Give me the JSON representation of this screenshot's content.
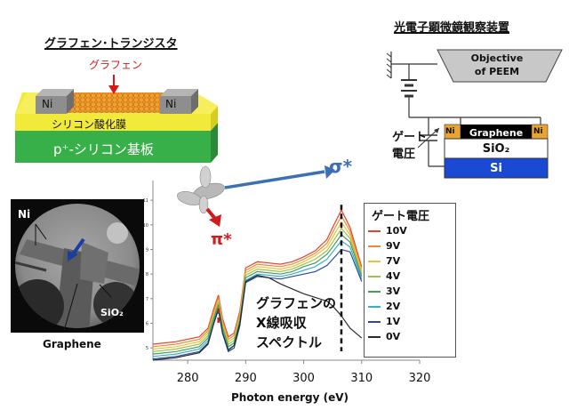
{
  "transistor": {
    "title": "グラフェン･トランジスタ",
    "graphene_label": "グラフェン",
    "ni_left": "Ni",
    "ni_right": "Ni",
    "oxide_label": "シリコン酸化膜",
    "substrate_label": "p⁺-シリコン基板"
  },
  "peem": {
    "title": "光電子顕微鏡観察装置",
    "objective_line1": "Objective",
    "objective_line2": "of PEEM",
    "gate_line1": "ゲート",
    "gate_line2": "電圧",
    "ni_left": "Ni",
    "ni_right": "Ni",
    "graphene_label": "Graphene",
    "sio2_label": "SiO₂",
    "si_label": "Si"
  },
  "micrograph": {
    "ni_label": "Ni",
    "sio2_label": "SiO₂",
    "graphene_label": "Graphene"
  },
  "spectrum_labels": {
    "pi_star": "π*",
    "sigma_star": "σ*",
    "caption_line1": "グラフェンの",
    "caption_line2": "X線吸収",
    "caption_line3": "スペクトル"
  },
  "colors": {
    "yellow_layer": "#f2ea3a",
    "green_layer": "#38b04a",
    "blue_layer": "#1a49d4",
    "ni_gray": "#8e8e8e",
    "arrow_red": "#d11b1b",
    "arrow_blue": "#3d6fb5",
    "graphene_orange": "#f0a22c"
  },
  "chart_data": {
    "type": "line",
    "xlabel": "Photon energy (eV)",
    "ylabel": "",
    "xlim": [
      274,
      320
    ],
    "ylim": [
      4.5,
      11.8
    ],
    "x_ticks": [
      280,
      290,
      300,
      310,
      320
    ],
    "y_ticks": [
      5,
      6,
      7,
      8,
      9,
      10,
      11
    ],
    "x_tick_labels": [
      "280",
      "290",
      "300",
      "310",
      "320"
    ],
    "y_tick_labels": [
      "5",
      "6",
      "7",
      "8",
      "9",
      "10",
      "11"
    ],
    "grid": false,
    "legend_title": "ゲート電圧",
    "legend_position": "right",
    "pi_star_energy": 285.3,
    "sigma_star_energy": 306.5,
    "x": [
      274,
      278,
      282,
      283.5,
      284.5,
      285.3,
      286,
      287,
      288,
      289,
      290,
      292,
      294,
      296,
      298,
      300,
      302,
      304,
      305,
      306.5,
      308,
      310
    ],
    "series": [
      {
        "name": "10V",
        "color": "#e8402c",
        "values": [
          5.15,
          5.25,
          5.45,
          5.8,
          6.6,
          7.15,
          6.2,
          5.45,
          5.6,
          6.5,
          8.25,
          8.5,
          8.45,
          8.4,
          8.5,
          8.7,
          8.95,
          9.4,
          9.9,
          10.6,
          9.9,
          8.3
        ]
      },
      {
        "name": "9V",
        "color": "#f08a3a",
        "values": [
          5.05,
          5.15,
          5.35,
          5.7,
          6.5,
          7.05,
          6.1,
          5.35,
          5.5,
          6.4,
          8.15,
          8.4,
          8.35,
          8.3,
          8.4,
          8.6,
          8.85,
          9.25,
          9.7,
          10.35,
          9.75,
          8.2
        ]
      },
      {
        "name": "7V",
        "color": "#e8c23a",
        "values": [
          4.95,
          5.05,
          5.25,
          5.6,
          6.4,
          6.95,
          6.0,
          5.25,
          5.4,
          6.3,
          8.05,
          8.3,
          8.25,
          8.2,
          8.3,
          8.5,
          8.75,
          9.1,
          9.5,
          10.1,
          9.6,
          8.1
        ]
      },
      {
        "name": "4V",
        "color": "#9bc24a",
        "values": [
          4.85,
          4.95,
          5.15,
          5.5,
          6.3,
          6.85,
          5.9,
          5.15,
          5.3,
          6.2,
          7.95,
          8.2,
          8.15,
          8.1,
          8.2,
          8.4,
          8.6,
          8.95,
          9.3,
          9.85,
          9.45,
          8.0
        ]
      },
      {
        "name": "3V",
        "color": "#4a9a5a",
        "values": [
          4.75,
          4.85,
          5.05,
          5.4,
          6.2,
          6.75,
          5.8,
          5.05,
          5.2,
          6.1,
          7.85,
          8.1,
          8.05,
          8.0,
          8.1,
          8.3,
          8.45,
          8.8,
          9.1,
          9.6,
          9.3,
          7.9
        ]
      },
      {
        "name": "2V",
        "color": "#3ab0c8",
        "values": [
          4.65,
          4.75,
          4.95,
          5.3,
          6.1,
          6.65,
          5.7,
          4.95,
          5.1,
          6.0,
          7.75,
          8.0,
          7.95,
          7.9,
          8.0,
          8.15,
          8.3,
          8.6,
          8.9,
          9.35,
          9.1,
          7.8
        ]
      },
      {
        "name": "1V",
        "color": "#2a4aa0",
        "values": [
          4.55,
          4.65,
          4.85,
          5.2,
          6.0,
          6.55,
          5.6,
          4.85,
          5.0,
          5.9,
          7.65,
          7.9,
          7.85,
          7.8,
          7.9,
          8.0,
          8.1,
          8.35,
          8.6,
          9.0,
          8.9,
          7.7
        ]
      },
      {
        "name": "0V",
        "color": "#2b2b2b",
        "values": [
          4.5,
          4.6,
          4.8,
          5.15,
          6.0,
          6.6,
          5.6,
          4.9,
          5.1,
          6.0,
          7.7,
          7.95,
          7.85,
          7.6,
          7.4,
          7.2,
          7.05,
          6.9,
          6.7,
          6.3,
          5.8,
          5.4
        ]
      }
    ]
  }
}
